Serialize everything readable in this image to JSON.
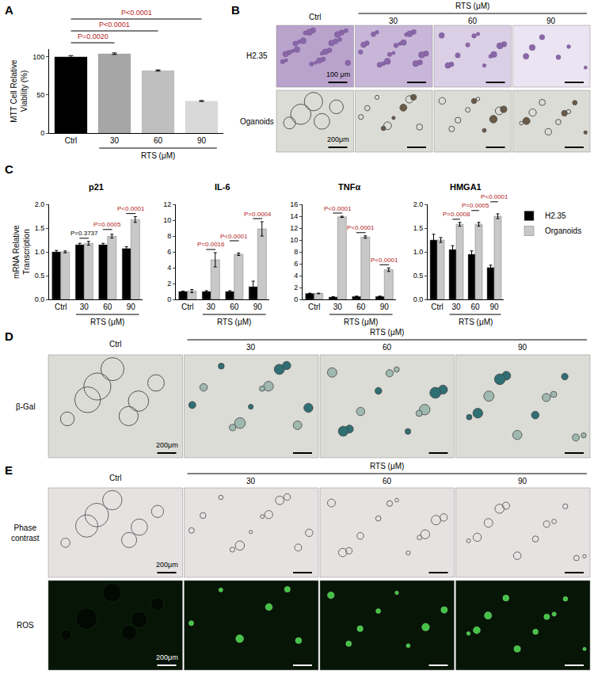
{
  "chart_data": [
    {
      "panel": "A",
      "type": "bar",
      "categories": [
        "Ctrl",
        "30",
        "60",
        "90"
      ],
      "group_label": "RTS (μM)",
      "y_label": "MTT Cell Relative Viability (%)",
      "values": [
        100,
        104,
        82,
        42
      ],
      "errors": [
        1.5,
        1,
        0.8,
        0.6
      ],
      "colors": [
        "#000000",
        "#a6a6a6",
        "#bfbfbf",
        "#d9d9d9"
      ],
      "ylim": [
        0,
        110
      ],
      "yticks": [
        0,
        50,
        100
      ],
      "comparisons": [
        {
          "from": "Ctrl",
          "to": "30",
          "label": "P=0.0020",
          "color": "#b22222"
        },
        {
          "from": "Ctrl",
          "to": "60",
          "label": "P<0.0001",
          "color": "#b22222"
        },
        {
          "from": "Ctrl",
          "to": "90",
          "label": "P<0.0001",
          "color": "#b22222"
        }
      ]
    },
    {
      "panel": "C",
      "type": "bar",
      "title": "p21",
      "categories": [
        "Ctrl",
        "30",
        "60",
        "90"
      ],
      "group_label": "RTS (μM)",
      "y_label": "mRNA Relative Transcription",
      "series": [
        {
          "name": "H2.35",
          "color": "#000000",
          "values": [
            1.0,
            1.15,
            1.15,
            1.07
          ],
          "errors": [
            0.03,
            0.03,
            0.03,
            0.04
          ]
        },
        {
          "name": "Organoids",
          "color": "#c8c8c8",
          "values": [
            1.0,
            1.18,
            1.33,
            1.68
          ],
          "errors": [
            0.02,
            0.04,
            0.04,
            0.06
          ]
        }
      ],
      "ylim": [
        0,
        2
      ],
      "yticks": [
        {
          "value": 0,
          "label": "0.0"
        },
        0.5,
        {
          "value": 1,
          "label": "1.0"
        },
        1.5,
        {
          "value": 2,
          "label": "2.0"
        }
      ],
      "comparisons": [
        {
          "category": "30",
          "label": "P=0.3737",
          "color": "#000000"
        },
        {
          "category": "60",
          "label": "P=0.0005",
          "color": "#b22222"
        },
        {
          "category": "90",
          "label": "P<0.0001",
          "color": "#b22222"
        }
      ]
    },
    {
      "panel": "C",
      "type": "bar",
      "title": "IL-6",
      "categories": [
        "Ctrl",
        "30",
        "60",
        "90"
      ],
      "group_label": "RTS (μM)",
      "series": [
        {
          "name": "H2.35",
          "color": "#000000",
          "values": [
            1.0,
            1.0,
            1.0,
            1.6
          ],
          "errors": [
            0.05,
            0.1,
            0.1,
            0.7
          ]
        },
        {
          "name": "Organoids",
          "color": "#c8c8c8",
          "values": [
            1.05,
            5.0,
            5.7,
            8.9
          ],
          "errors": [
            0.2,
            0.9,
            0.15,
            0.9
          ]
        }
      ],
      "ylim": [
        0,
        12
      ],
      "yticks": [
        0,
        2,
        4,
        6,
        8,
        10,
        12
      ],
      "comparisons": [
        {
          "category": "30",
          "label": "P=0.0016",
          "color": "#b22222"
        },
        {
          "category": "60",
          "label": "P<0.0001",
          "color": "#b22222"
        },
        {
          "category": "90",
          "label": "P=0.0004",
          "color": "#b22222"
        }
      ]
    },
    {
      "panel": "C",
      "type": "bar",
      "title": "TNFα",
      "categories": [
        "Ctrl",
        "30",
        "60",
        "90"
      ],
      "group_label": "RTS (μM)",
      "series": [
        {
          "name": "H2.35",
          "color": "#000000",
          "values": [
            1.0,
            0.4,
            0.5,
            0.5
          ],
          "errors": [
            0.05,
            0.05,
            0.05,
            0.05
          ]
        },
        {
          "name": "Organoids",
          "color": "#c8c8c8",
          "values": [
            1.0,
            13.9,
            10.5,
            5.0
          ],
          "errors": [
            0.05,
            0.1,
            0.2,
            0.3
          ]
        }
      ],
      "ylim": [
        0,
        16
      ],
      "yticks": [
        0,
        2,
        4,
        6,
        8,
        10,
        12,
        14,
        16
      ],
      "comparisons": [
        {
          "category": "30",
          "label": "P<0.0001",
          "color": "#b22222"
        },
        {
          "category": "60",
          "label": "P<0.0001",
          "color": "#b22222"
        },
        {
          "category": "90",
          "label": "P<0.0001",
          "color": "#b22222"
        }
      ]
    },
    {
      "panel": "C",
      "type": "bar",
      "title": "HMGA1",
      "categories": [
        "Ctrl",
        "30",
        "60",
        "90"
      ],
      "group_label": "RTS (μM)",
      "series": [
        {
          "name": "H2.35",
          "color": "#000000",
          "values": [
            1.25,
            1.05,
            0.95,
            0.67
          ],
          "errors": [
            0.12,
            0.08,
            0.07,
            0.05
          ]
        },
        {
          "name": "Organoids",
          "color": "#c8c8c8",
          "values": [
            1.25,
            1.58,
            1.58,
            1.75
          ],
          "errors": [
            0.05,
            0.04,
            0.04,
            0.05
          ]
        }
      ],
      "ylim": [
        0,
        2
      ],
      "yticks": [
        {
          "value": 0,
          "label": "0.0"
        },
        0.5,
        {
          "value": 1,
          "label": "1.0"
        },
        1.5,
        {
          "value": 2,
          "label": "2.0"
        }
      ],
      "legend": "right",
      "comparisons": [
        {
          "category": "30",
          "label": "P=0.0008",
          "color": "#b22222"
        },
        {
          "category": "60",
          "label": "P=0.0005",
          "color": "#b22222"
        },
        {
          "category": "90",
          "label": "P<0.0001",
          "color": "#b22222"
        }
      ]
    }
  ],
  "image_panels": [
    {
      "panel": "B",
      "columns": [
        "Ctrl",
        "30",
        "60",
        "90"
      ],
      "group_label": "RTS (μM)",
      "rows": [
        {
          "label": "H2.35",
          "scale_bar": "100 μm"
        },
        {
          "label": "Oganoids",
          "scale_bar": "200μm"
        }
      ]
    },
    {
      "panel": "D",
      "columns": [
        "Ctrl",
        "30",
        "60",
        "90"
      ],
      "group_label": "RTS (μM)",
      "rows": [
        {
          "label": "β-Gal",
          "scale_bar": "200μm"
        }
      ]
    },
    {
      "panel": "E",
      "columns": [
        "Ctrl",
        "30",
        "60",
        "90"
      ],
      "group_label": "RTS (μM)",
      "rows": [
        {
          "label": "Phase contrast",
          "scale_bar": "200μm"
        },
        {
          "label": "ROS",
          "scale_bar": "200μm"
        }
      ]
    }
  ]
}
